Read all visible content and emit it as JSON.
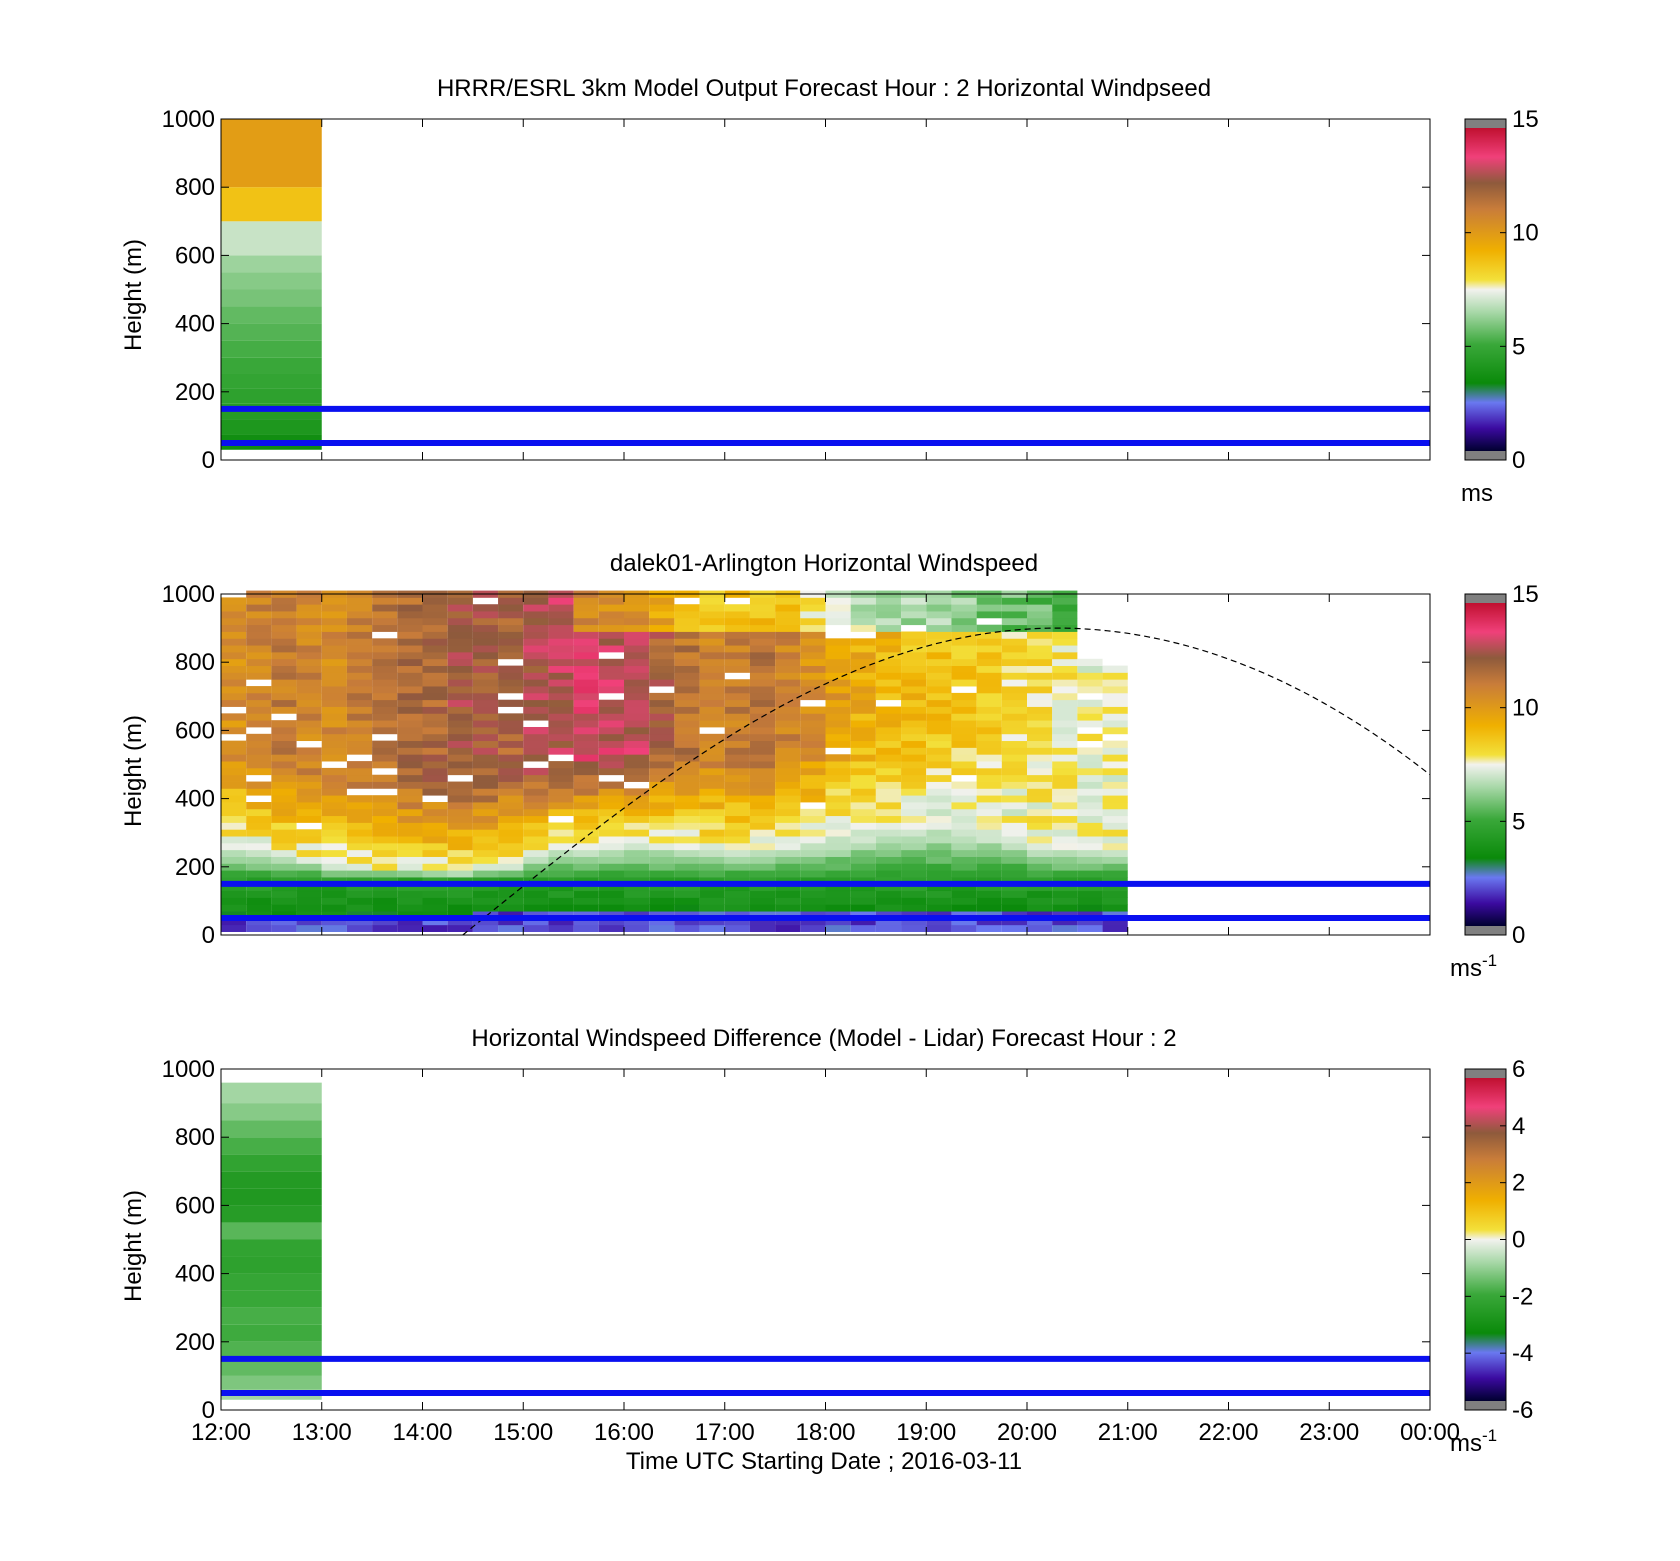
{
  "figure": {
    "xlabel": "Time UTC  Starting Date ; 2016-03-11",
    "xticks": [
      "12:00",
      "13:00",
      "14:00",
      "15:00",
      "16:00",
      "17:00",
      "18:00",
      "19:00",
      "20:00",
      "21:00",
      "22:00",
      "23:00",
      "00:00"
    ]
  },
  "chart_data": [
    {
      "type": "heatmap",
      "title": "HRRR/ESRL 3km Model Output   Forecast Hour : 2 Horizontal Windpseed",
      "ylabel": "Height (m)",
      "xlim": [
        "12:00",
        "00:00"
      ],
      "ylim": [
        0,
        1000
      ],
      "yticks": [
        "0",
        "200",
        "400",
        "600",
        "800",
        "1000"
      ],
      "reference_lines_m": [
        150,
        50
      ],
      "reference_line_color": "#0a10f0",
      "colorbar": {
        "min": 0,
        "max": 15,
        "ticks": [
          "0",
          "5",
          "10",
          "15"
        ],
        "unit": "ms",
        "unit_sup": ""
      },
      "cells": [
        {
          "t0": 12.0,
          "t1": 13.0,
          "h0": 30,
          "h1": 75,
          "v": 3.4
        },
        {
          "t0": 12.0,
          "t1": 13.0,
          "h0": 75,
          "h1": 120,
          "v": 3.9
        },
        {
          "t0": 12.0,
          "t1": 13.0,
          "h0": 120,
          "h1": 165,
          "v": 4.2
        },
        {
          "t0": 12.0,
          "t1": 13.0,
          "h0": 165,
          "h1": 210,
          "v": 4.5
        },
        {
          "t0": 12.0,
          "t1": 13.0,
          "h0": 210,
          "h1": 255,
          "v": 4.7
        },
        {
          "t0": 12.0,
          "t1": 13.0,
          "h0": 255,
          "h1": 300,
          "v": 4.9
        },
        {
          "t0": 12.0,
          "t1": 13.0,
          "h0": 300,
          "h1": 350,
          "v": 5.1
        },
        {
          "t0": 12.0,
          "t1": 13.0,
          "h0": 350,
          "h1": 400,
          "v": 5.3
        },
        {
          "t0": 12.0,
          "t1": 13.0,
          "h0": 400,
          "h1": 450,
          "v": 5.5
        },
        {
          "t0": 12.0,
          "t1": 13.0,
          "h0": 450,
          "h1": 500,
          "v": 5.8
        },
        {
          "t0": 12.0,
          "t1": 13.0,
          "h0": 500,
          "h1": 550,
          "v": 6.0
        },
        {
          "t0": 12.0,
          "t1": 13.0,
          "h0": 550,
          "h1": 600,
          "v": 6.3
        },
        {
          "t0": 12.0,
          "t1": 13.0,
          "h0": 600,
          "h1": 700,
          "v": 6.9
        },
        {
          "t0": 12.0,
          "t1": 13.0,
          "h0": 700,
          "h1": 800,
          "v": 8.8
        },
        {
          "t0": 12.0,
          "t1": 13.0,
          "h0": 800,
          "h1": 1000,
          "v": 10.0
        }
      ]
    },
    {
      "type": "heatmap",
      "title": "dalek01-Arlington  Horizontal Windspeed",
      "ylabel": "Height (m)",
      "xlim": [
        "12:00",
        "00:00"
      ],
      "ylim": [
        0,
        1000
      ],
      "yticks": [
        "0",
        "200",
        "400",
        "600",
        "800",
        "1000"
      ],
      "reference_lines_m": [
        150,
        50
      ],
      "reference_line_color": "#0a10f0",
      "colorbar": {
        "min": 0,
        "max": 15,
        "ticks": [
          "0",
          "5",
          "10",
          "15"
        ],
        "unit": "ms",
        "unit_sup": "-1"
      },
      "lidar_profile": {
        "t_start": 12.0,
        "t_end": 21.0,
        "step_h": 0.25,
        "gate_m": 20,
        "top_m": [
          980,
          1000,
          1000,
          1000,
          1000,
          1000,
          1000,
          1000,
          1000,
          1000,
          1000,
          1000,
          1000,
          1000,
          1000,
          1000,
          1000,
          1000,
          1000,
          1000,
          1000,
          1000,
          1000,
          1000,
          1000,
          1000,
          1000,
          1000,
          1000,
          1000,
          1000,
          1000,
          1000,
          1000,
          800,
          780
        ],
        "low_jet_m": [
          22,
          22,
          22,
          22,
          22,
          25,
          25,
          25,
          28,
          30,
          38,
          40,
          45,
          45,
          45,
          45,
          45,
          45,
          45,
          42,
          42,
          40,
          40,
          40,
          40,
          40,
          38,
          38,
          38,
          38,
          38,
          38,
          35,
          35,
          35,
          35
        ],
        "bl_top_m": [
          260,
          250,
          230,
          220,
          200,
          190,
          190,
          185,
          180,
          180,
          190,
          200,
          240,
          260,
          270,
          270,
          280,
          270,
          260,
          250,
          250,
          260,
          270,
          280,
          300,
          320,
          330,
          340,
          340,
          330,
          320,
          300,
          280,
          260,
          250,
          250
        ],
        "peak": [
          10.5,
          11.0,
          11.2,
          11.0,
          10.8,
          11.2,
          11.5,
          11.8,
          12.0,
          12.5,
          12.3,
          12.0,
          12.8,
          13.0,
          13.5,
          13.2,
          13.0,
          12.2,
          11.5,
          11.0,
          11.2,
          11.5,
          11.0,
          10.5,
          10.0,
          9.5,
          9.2,
          9.0,
          8.8,
          8.6,
          8.4,
          8.2,
          8.0,
          7.8,
          7.6,
          7.5
        ]
      },
      "sunline": {
        "t_start": 14.4,
        "peak_time": 20.3,
        "peak_m": 900,
        "end_time": 24.0,
        "end_m": 470
      }
    },
    {
      "type": "heatmap",
      "title": "Horizontal Windspeed Difference (Model - Lidar) Forecast Hour : 2",
      "ylabel": "Height (m)",
      "xlim": [
        "12:00",
        "00:00"
      ],
      "ylim": [
        0,
        1000
      ],
      "yticks": [
        "0",
        "200",
        "400",
        "600",
        "800",
        "1000"
      ],
      "reference_lines_m": [
        150,
        50
      ],
      "reference_line_color": "#0a10f0",
      "colorbar": {
        "min": -6,
        "max": 6,
        "ticks": [
          "-6",
          "-4",
          "-2",
          "0",
          "2",
          "4",
          "6"
        ],
        "unit": "ms",
        "unit_sup": "-1"
      },
      "cells": [
        {
          "t0": 12.0,
          "t1": 13.0,
          "h0": 30,
          "h1": 60,
          "v": -0.9
        },
        {
          "t0": 12.0,
          "t1": 13.0,
          "h0": 60,
          "h1": 100,
          "v": -1.3
        },
        {
          "t0": 12.0,
          "t1": 13.0,
          "h0": 100,
          "h1": 150,
          "v": -1.6
        },
        {
          "t0": 12.0,
          "t1": 13.0,
          "h0": 150,
          "h1": 200,
          "v": -1.8
        },
        {
          "t0": 12.0,
          "t1": 13.0,
          "h0": 200,
          "h1": 250,
          "v": -2.0
        },
        {
          "t0": 12.0,
          "t1": 13.0,
          "h0": 250,
          "h1": 300,
          "v": -1.9
        },
        {
          "t0": 12.0,
          "t1": 13.0,
          "h0": 300,
          "h1": 350,
          "v": -2.1
        },
        {
          "t0": 12.0,
          "t1": 13.0,
          "h0": 350,
          "h1": 400,
          "v": -2.2
        },
        {
          "t0": 12.0,
          "t1": 13.0,
          "h0": 400,
          "h1": 450,
          "v": -2.4
        },
        {
          "t0": 12.0,
          "t1": 13.0,
          "h0": 450,
          "h1": 500,
          "v": -2.3
        },
        {
          "t0": 12.0,
          "t1": 13.0,
          "h0": 500,
          "h1": 550,
          "v": -1.7
        },
        {
          "t0": 12.0,
          "t1": 13.0,
          "h0": 550,
          "h1": 600,
          "v": -2.6
        },
        {
          "t0": 12.0,
          "t1": 13.0,
          "h0": 600,
          "h1": 650,
          "v": -2.8
        },
        {
          "t0": 12.0,
          "t1": 13.0,
          "h0": 650,
          "h1": 700,
          "v": -2.7
        },
        {
          "t0": 12.0,
          "t1": 13.0,
          "h0": 700,
          "h1": 750,
          "v": -2.3
        },
        {
          "t0": 12.0,
          "t1": 13.0,
          "h0": 750,
          "h1": 800,
          "v": -1.9
        },
        {
          "t0": 12.0,
          "t1": 13.0,
          "h0": 800,
          "h1": 850,
          "v": -1.6
        },
        {
          "t0": 12.0,
          "t1": 13.0,
          "h0": 850,
          "h1": 900,
          "v": -1.2
        },
        {
          "t0": 12.0,
          "t1": 13.0,
          "h0": 900,
          "h1": 960,
          "v": -0.9
        }
      ]
    }
  ]
}
